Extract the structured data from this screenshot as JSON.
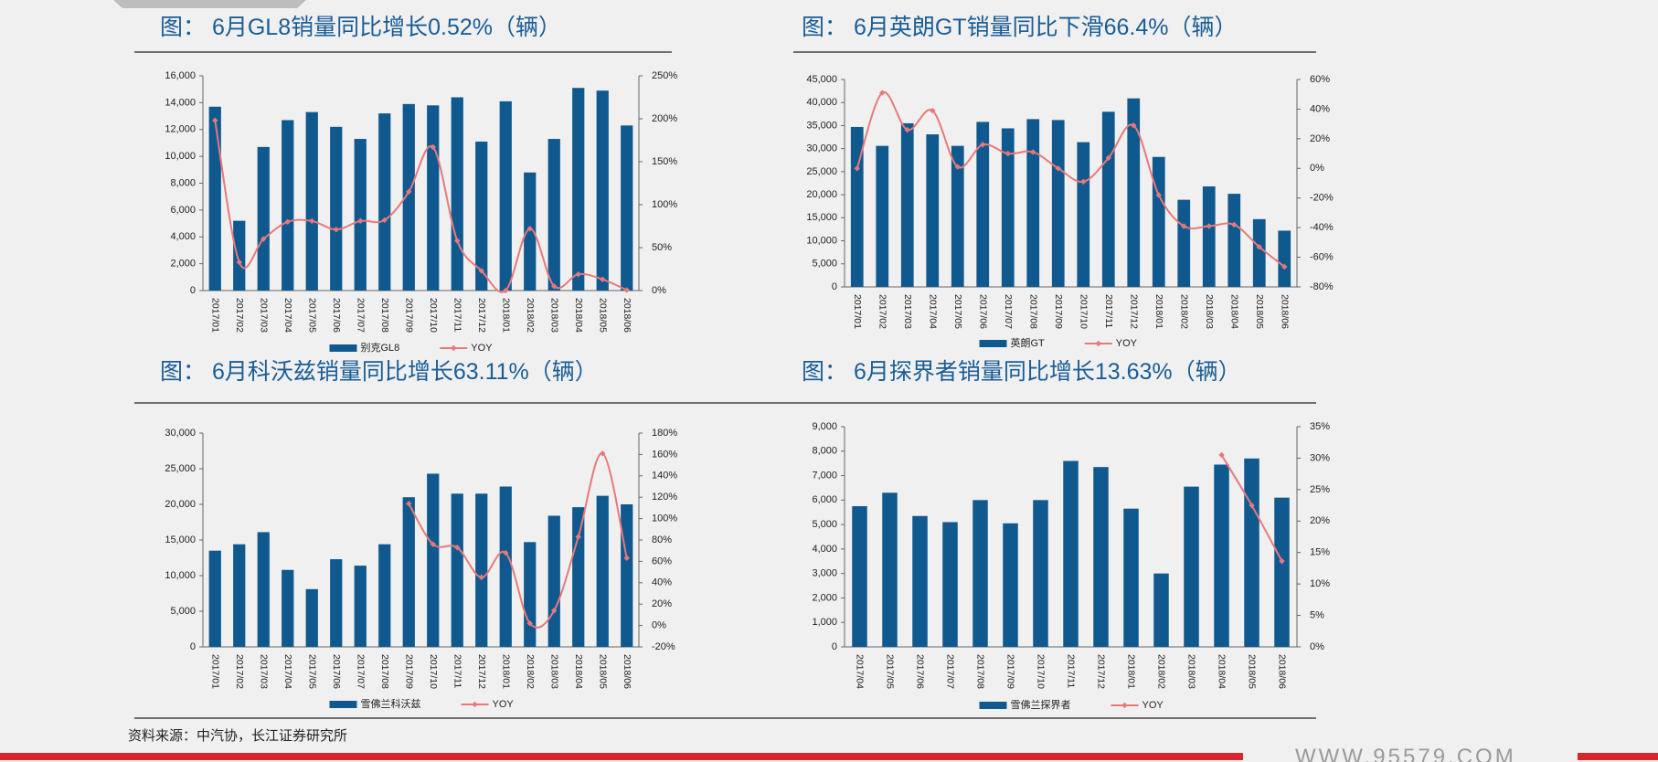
{
  "chart_data": [
    {
      "type": "combo",
      "title": "图：  6月GL8销量同比增长0.52%（辆）",
      "categories": [
        "2017/01",
        "2017/02",
        "2017/03",
        "2017/04",
        "2017/05",
        "2017/06",
        "2017/07",
        "2017/08",
        "2017/09",
        "2017/10",
        "2017/11",
        "2017/12",
        "2018/01",
        "2018/02",
        "2018/03",
        "2018/04",
        "2018/05",
        "2018/06"
      ],
      "series": [
        {
          "name": "别克GL8",
          "type": "bar",
          "color": "#10598f",
          "values": [
            13700,
            5200,
            10700,
            12700,
            13300,
            12200,
            11300,
            13200,
            13900,
            13800,
            14400,
            11100,
            14100,
            8800,
            11300,
            15100,
            14900,
            12300
          ]
        },
        {
          "name": "YOY",
          "type": "line",
          "axis": "y2",
          "color": "#e8797a",
          "values": [
            198,
            33,
            60,
            80,
            81,
            71,
            81,
            82,
            115,
            167,
            58,
            23,
            0,
            72,
            5,
            19,
            13,
            0.52
          ]
        }
      ],
      "ylim": [
        0,
        16000
      ],
      "yticks": [
        0,
        {
          "value": 2000,
          "label": "2,000"
        },
        {
          "value": 4000,
          "label": "4,000"
        },
        {
          "value": 6000,
          "label": "6,000"
        },
        {
          "value": 8000,
          "label": "8,000"
        },
        {
          "value": 10000,
          "label": "10,000"
        },
        {
          "value": 12000,
          "label": "12,000"
        },
        {
          "value": 14000,
          "label": "14,000"
        },
        {
          "value": 16000,
          "label": "16,000"
        }
      ],
      "y2lim": [
        0,
        250
      ],
      "y2ticks": [
        {
          "value": 0,
          "label": "0%"
        },
        {
          "value": 50,
          "label": "50%"
        },
        {
          "value": 100,
          "label": "100%"
        },
        {
          "value": 150,
          "label": "150%"
        },
        {
          "value": 200,
          "label": "200%"
        },
        {
          "value": 250,
          "label": "250%"
        }
      ]
    },
    {
      "type": "combo",
      "title": "图：  6月英朗GT销量同比下滑66.4%（辆）",
      "categories": [
        "2017/01",
        "2017/02",
        "2017/03",
        "2017/04",
        "2017/05",
        "2017/06",
        "2017/07",
        "2017/08",
        "2017/09",
        "2017/10",
        "2017/11",
        "2017/12",
        "2018/01",
        "2018/02",
        "2018/03",
        "2018/04",
        "2018/05",
        "2018/06"
      ],
      "series": [
        {
          "name": "英朗GT",
          "type": "bar",
          "color": "#10598f",
          "values": [
            34700,
            30600,
            35500,
            33100,
            30600,
            35800,
            34400,
            36400,
            36200,
            31400,
            38000,
            40900,
            28200,
            18900,
            21800,
            20200,
            14700,
            12200
          ]
        },
        {
          "name": "YOY",
          "type": "line",
          "axis": "y2",
          "color": "#e8797a",
          "values": [
            0,
            51,
            26,
            39,
            1,
            16,
            10,
            11,
            0,
            -9,
            7,
            29,
            -18,
            -39,
            -39,
            -38,
            -53,
            -66.4
          ]
        }
      ],
      "ylim": [
        0,
        45000
      ],
      "yticks": [
        0,
        {
          "value": 5000,
          "label": "5,000"
        },
        {
          "value": 10000,
          "label": "10,000"
        },
        {
          "value": 15000,
          "label": "15,000"
        },
        {
          "value": 20000,
          "label": "20,000"
        },
        {
          "value": 25000,
          "label": "25,000"
        },
        {
          "value": 30000,
          "label": "30,000"
        },
        {
          "value": 35000,
          "label": "35,000"
        },
        {
          "value": 40000,
          "label": "40,000"
        },
        {
          "value": 45000,
          "label": "45,000"
        }
      ],
      "y2lim": [
        -80,
        60
      ],
      "y2ticks": [
        {
          "value": -80,
          "label": "-80%"
        },
        {
          "value": -60,
          "label": "-60%"
        },
        {
          "value": -40,
          "label": "-40%"
        },
        {
          "value": -20,
          "label": "-20%"
        },
        {
          "value": 0,
          "label": "0%"
        },
        {
          "value": 20,
          "label": "20%"
        },
        {
          "value": 40,
          "label": "40%"
        },
        {
          "value": 60,
          "label": "60%"
        }
      ]
    },
    {
      "type": "combo",
      "title": "图：  6月科沃兹销量同比增长63.11%（辆）",
      "categories": [
        "2017/01",
        "2017/02",
        "2017/03",
        "2017/04",
        "2017/05",
        "2017/06",
        "2017/07",
        "2017/08",
        "2017/09",
        "2017/10",
        "2017/11",
        "2017/12",
        "2018/01",
        "2018/02",
        "2018/03",
        "2018/04",
        "2018/05",
        "2018/06"
      ],
      "series": [
        {
          "name": "雪佛兰科沃兹",
          "type": "bar",
          "color": "#10598f",
          "values": [
            13500,
            14400,
            16100,
            10800,
            8100,
            12300,
            11400,
            14400,
            21000,
            24300,
            21500,
            21500,
            22500,
            14700,
            18400,
            19600,
            21200,
            20000
          ]
        },
        {
          "name": "YOY",
          "type": "line",
          "axis": "y2",
          "color": "#e8797a",
          "values": [
            null,
            null,
            null,
            null,
            null,
            null,
            null,
            null,
            114,
            76,
            73,
            45,
            68,
            2,
            14,
            83,
            161,
            63.11
          ]
        }
      ],
      "ylim": [
        0,
        30000
      ],
      "yticks": [
        0,
        {
          "value": 5000,
          "label": "5,000"
        },
        {
          "value": 10000,
          "label": "10,000"
        },
        {
          "value": 15000,
          "label": "15,000"
        },
        {
          "value": 20000,
          "label": "20,000"
        },
        {
          "value": 25000,
          "label": "25,000"
        },
        {
          "value": 30000,
          "label": "30,000"
        }
      ],
      "y2lim": [
        -20,
        180
      ],
      "y2ticks": [
        {
          "value": -20,
          "label": "-20%"
        },
        {
          "value": 0,
          "label": "0%"
        },
        {
          "value": 20,
          "label": "20%"
        },
        {
          "value": 40,
          "label": "40%"
        },
        {
          "value": 60,
          "label": "60%"
        },
        {
          "value": 80,
          "label": "80%"
        },
        {
          "value": 100,
          "label": "100%"
        },
        {
          "value": 120,
          "label": "120%"
        },
        {
          "value": 140,
          "label": "140%"
        },
        {
          "value": 160,
          "label": "160%"
        },
        {
          "value": 180,
          "label": "180%"
        }
      ]
    },
    {
      "type": "combo",
      "title": "图：  6月探界者销量同比增长13.63%（辆）",
      "categories": [
        "2017/04",
        "2017/05",
        "2017/06",
        "2017/07",
        "2017/08",
        "2017/09",
        "2017/10",
        "2017/11",
        "2017/12",
        "2018/01",
        "2018/02",
        "2018/03",
        "2018/04",
        "2018/05",
        "2018/06"
      ],
      "series": [
        {
          "name": "雪佛兰探界者",
          "type": "bar",
          "color": "#10598f",
          "values": [
            5750,
            6300,
            5350,
            5100,
            6000,
            5050,
            6000,
            7600,
            7350,
            5650,
            3000,
            6550,
            7450,
            7700,
            6100
          ]
        },
        {
          "name": "YOY",
          "type": "line",
          "axis": "y2",
          "color": "#e8797a",
          "values": [
            null,
            null,
            null,
            null,
            null,
            null,
            null,
            null,
            null,
            null,
            null,
            null,
            30.5,
            22.5,
            13.63
          ]
        }
      ],
      "ylim": [
        0,
        9000
      ],
      "yticks": [
        0,
        {
          "value": 1000,
          "label": "1,000"
        },
        {
          "value": 2000,
          "label": "2,000"
        },
        {
          "value": 3000,
          "label": "3,000"
        },
        {
          "value": 4000,
          "label": "4,000"
        },
        {
          "value": 5000,
          "label": "5,000"
        },
        {
          "value": 6000,
          "label": "6,000"
        },
        {
          "value": 7000,
          "label": "7,000"
        },
        {
          "value": 8000,
          "label": "8,000"
        },
        {
          "value": 9000,
          "label": "9,000"
        }
      ],
      "y2lim": [
        0,
        35
      ],
      "y2ticks": [
        {
          "value": 0,
          "label": "0%"
        },
        {
          "value": 5,
          "label": "5%"
        },
        {
          "value": 10,
          "label": "10%"
        },
        {
          "value": 15,
          "label": "15%"
        },
        {
          "value": 20,
          "label": "20%"
        },
        {
          "value": 25,
          "label": "25%"
        },
        {
          "value": 30,
          "label": "30%"
        },
        {
          "value": 35,
          "label": "35%"
        }
      ]
    }
  ],
  "source": "资料来源：中汽协，长江证券研究所",
  "watermark": "WWW.95579.COM"
}
